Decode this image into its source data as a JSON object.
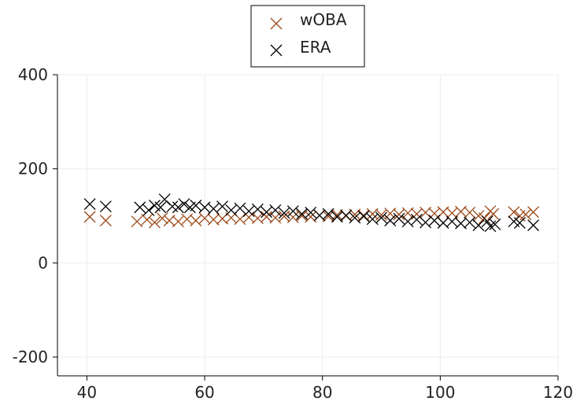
{
  "chart_data": {
    "type": "scatter",
    "title": "",
    "xlabel": "",
    "ylabel": "",
    "xlim": [
      35,
      120
    ],
    "ylim": [
      -240,
      400
    ],
    "xticks": [
      40,
      60,
      80,
      100,
      120
    ],
    "yticks": [
      -200,
      0,
      200,
      400
    ],
    "xtick_labels": [
      "40",
      "60",
      "80",
      "100",
      "120"
    ],
    "ytick_labels": [
      "-200",
      "0",
      "200",
      "400"
    ],
    "grid": true,
    "legend_position": "top-center",
    "marker": "x",
    "series": [
      {
        "name": "wOBA",
        "color": "#9c4a1a",
        "points": [
          [
            40.5,
            98
          ],
          [
            43.2,
            90
          ],
          [
            48.5,
            88
          ],
          [
            50.2,
            92
          ],
          [
            51.5,
            86
          ],
          [
            52.8,
            95
          ],
          [
            54.0,
            90
          ],
          [
            55.5,
            88
          ],
          [
            57.0,
            93
          ],
          [
            58.5,
            90
          ],
          [
            60.0,
            95
          ],
          [
            61.5,
            92
          ],
          [
            63.0,
            94
          ],
          [
            64.5,
            96
          ],
          [
            66.0,
            93
          ],
          [
            67.5,
            97
          ],
          [
            69.0,
            95
          ],
          [
            70.5,
            98
          ],
          [
            72.0,
            96
          ],
          [
            73.5,
            99
          ],
          [
            75.0,
            97
          ],
          [
            76.5,
            100
          ],
          [
            78.0,
            98
          ],
          [
            79.5,
            101
          ],
          [
            81.0,
            99
          ],
          [
            82.5,
            102
          ],
          [
            84.0,
            100
          ],
          [
            85.5,
            103
          ],
          [
            87.0,
            101
          ],
          [
            88.5,
            104
          ],
          [
            90.0,
            102
          ],
          [
            91.5,
            105
          ],
          [
            93.0,
            103
          ],
          [
            94.5,
            106
          ],
          [
            96.0,
            104
          ],
          [
            97.5,
            107
          ],
          [
            99.0,
            105
          ],
          [
            100.5,
            108
          ],
          [
            102.0,
            106
          ],
          [
            103.5,
            109
          ],
          [
            105.0,
            107
          ],
          [
            106.5,
            100
          ],
          [
            107.5,
            95
          ],
          [
            108.5,
            110
          ],
          [
            109.0,
            104
          ],
          [
            112.5,
            108
          ],
          [
            113.5,
            100
          ],
          [
            114.5,
            103
          ],
          [
            115.8,
            108
          ]
        ]
      },
      {
        "name": "ERA",
        "color": "#000000",
        "points": [
          [
            40.5,
            125
          ],
          [
            43.2,
            120
          ],
          [
            49.0,
            118
          ],
          [
            50.5,
            112
          ],
          [
            51.5,
            122
          ],
          [
            52.5,
            118
          ],
          [
            53.2,
            135
          ],
          [
            54.5,
            120
          ],
          [
            55.5,
            118
          ],
          [
            56.5,
            125
          ],
          [
            57.5,
            118
          ],
          [
            58.5,
            122
          ],
          [
            60.0,
            118
          ],
          [
            61.5,
            115
          ],
          [
            63.0,
            120
          ],
          [
            64.5,
            112
          ],
          [
            66.0,
            116
          ],
          [
            67.5,
            110
          ],
          [
            69.0,
            114
          ],
          [
            70.5,
            108
          ],
          [
            72.0,
            112
          ],
          [
            73.5,
            106
          ],
          [
            75.0,
            110
          ],
          [
            76.5,
            104
          ],
          [
            78.0,
            107
          ],
          [
            79.5,
            101
          ],
          [
            81.0,
            104
          ],
          [
            82.5,
            98
          ],
          [
            84.0,
            101
          ],
          [
            85.5,
            96
          ],
          [
            87.0,
            99
          ],
          [
            88.5,
            93
          ],
          [
            90.0,
            96
          ],
          [
            91.5,
            90
          ],
          [
            93.0,
            94
          ],
          [
            94.5,
            88
          ],
          [
            96.0,
            92
          ],
          [
            97.5,
            86
          ],
          [
            99.0,
            90
          ],
          [
            100.5,
            85
          ],
          [
            102.0,
            88
          ],
          [
            103.5,
            84
          ],
          [
            105.0,
            86
          ],
          [
            106.5,
            80
          ],
          [
            108.0,
            88
          ],
          [
            108.5,
            78
          ],
          [
            109.3,
            82
          ],
          [
            112.5,
            88
          ],
          [
            113.5,
            85
          ],
          [
            115.8,
            80
          ]
        ]
      }
    ]
  }
}
